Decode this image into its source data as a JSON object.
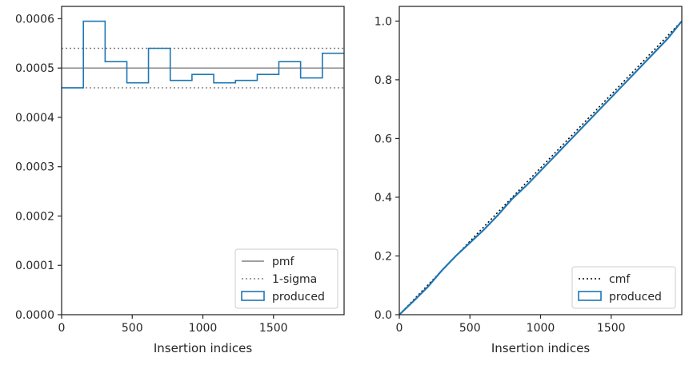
{
  "chart_data": [
    {
      "type": "histogram",
      "xlabel": "Insertion indices",
      "xlim": [
        0,
        2000
      ],
      "ylim": [
        0,
        0.000625
      ],
      "xticks": [
        0,
        500,
        1000,
        1500
      ],
      "xtick_labels": [
        "0",
        "500",
        "1000",
        "1500"
      ],
      "yticks": [
        0,
        0.0001,
        0.0002,
        0.0003,
        0.0004,
        0.0005,
        0.0006
      ],
      "ytick_labels": [
        "0.0000",
        "0.0001",
        "0.0002",
        "0.0003",
        "0.0004",
        "0.0005",
        "0.0006"
      ],
      "bin_edges": [
        0,
        154,
        308,
        462,
        615,
        769,
        923,
        1077,
        1231,
        1385,
        1538,
        1692,
        1846,
        2000
      ],
      "series": [
        {
          "name": "pmf",
          "style": "solid",
          "color": "#808080",
          "values": [
            0.0005
          ]
        },
        {
          "name": "1-sigma",
          "style": "dotted",
          "color": "#808080",
          "values": [
            0.00046,
            0.00054
          ]
        },
        {
          "name": "produced",
          "style": "step",
          "color": "#1f77b4",
          "values": [
            0.00046,
            0.000595,
            0.000513,
            0.00047,
            0.00054,
            0.000475,
            0.000487,
            0.00047,
            0.000475,
            0.000487,
            0.000513,
            0.00048,
            0.00053
          ]
        }
      ],
      "legend": {
        "position": "lower-right",
        "entries": [
          "pmf",
          "1-sigma",
          "produced"
        ]
      }
    },
    {
      "type": "line",
      "xlabel": "Insertion indices",
      "xlim": [
        0,
        2000
      ],
      "ylim": [
        0,
        1.05
      ],
      "xticks": [
        0,
        500,
        1000,
        1500
      ],
      "xtick_labels": [
        "0",
        "500",
        "1000",
        "1500"
      ],
      "yticks": [
        0,
        0.2,
        0.4,
        0.6,
        0.8,
        1.0
      ],
      "ytick_labels": [
        "0.0",
        "0.2",
        "0.4",
        "0.6",
        "0.8",
        "1.0"
      ],
      "series": [
        {
          "name": "cmf",
          "style": "dotted",
          "color": "#000000",
          "x": [
            0,
            2000
          ],
          "y": [
            0,
            1.0
          ]
        },
        {
          "name": "produced",
          "style": "solid",
          "color": "#1f77b4",
          "x": [
            0,
            100,
            200,
            300,
            400,
            500,
            600,
            700,
            800,
            900,
            1000,
            1100,
            1200,
            1300,
            1400,
            1500,
            1600,
            1700,
            1800,
            1900,
            2000
          ],
          "y": [
            0,
            0.046,
            0.094,
            0.15,
            0.2,
            0.245,
            0.29,
            0.34,
            0.395,
            0.44,
            0.49,
            0.54,
            0.59,
            0.64,
            0.69,
            0.74,
            0.79,
            0.84,
            0.89,
            0.94,
            1.0
          ]
        }
      ],
      "legend": {
        "position": "lower-right",
        "entries": [
          "cmf",
          "produced"
        ]
      }
    }
  ],
  "colors": {
    "axis": "#262626",
    "reference": "#808080",
    "produced": "#1f77b4",
    "cmf": "#000000"
  }
}
